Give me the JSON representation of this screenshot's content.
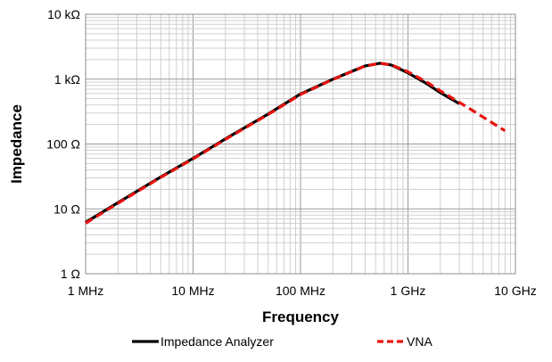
{
  "chart_data": {
    "type": "line",
    "title": "",
    "xlabel": "Frequency",
    "ylabel": "Impedance",
    "xscale": "log",
    "yscale": "log",
    "xlim": [
      1000000,
      10000000000
    ],
    "ylim": [
      1,
      10000
    ],
    "grid": true,
    "legend_position": "bottom",
    "x_ticks": [
      {
        "value": 1000000,
        "label": "1 MHz"
      },
      {
        "value": 10000000,
        "label": "10 MHz"
      },
      {
        "value": 100000000,
        "label": "100 MHz"
      },
      {
        "value": 1000000000,
        "label": "1 GHz"
      },
      {
        "value": 10000000000,
        "label": "10 GHz"
      }
    ],
    "y_ticks": [
      {
        "value": 1,
        "label": "1 Ω"
      },
      {
        "value": 10,
        "label": "10 Ω"
      },
      {
        "value": 100,
        "label": "100 Ω"
      },
      {
        "value": 1000,
        "label": "1 kΩ"
      },
      {
        "value": 10000,
        "label": "10 kΩ"
      }
    ],
    "series": [
      {
        "name": "Impedance Analyzer",
        "color": "#000000",
        "dash": "solid",
        "x": [
          1000000,
          2000000,
          5000000,
          10000000,
          20000000,
          50000000,
          100000000,
          200000000,
          400000000,
          550000000,
          700000000,
          1000000000,
          1500000000,
          2000000000,
          3000000000
        ],
        "y": [
          6.2,
          12.5,
          31,
          60,
          120,
          290,
          590,
          1000,
          1600,
          1760,
          1650,
          1250,
          850,
          620,
          420
        ]
      },
      {
        "name": "VNA",
        "color": "#e8130f",
        "dash": "dashed",
        "x": [
          1000000,
          2000000,
          5000000,
          10000000,
          20000000,
          50000000,
          100000000,
          200000000,
          400000000,
          550000000,
          700000000,
          1000000000,
          1500000000,
          2000000000,
          3000000000,
          5000000000,
          8000000000
        ],
        "y": [
          6,
          12.2,
          30.5,
          59,
          118,
          285,
          580,
          990,
          1590,
          1750,
          1660,
          1300,
          900,
          660,
          440,
          260,
          160
        ]
      }
    ]
  }
}
